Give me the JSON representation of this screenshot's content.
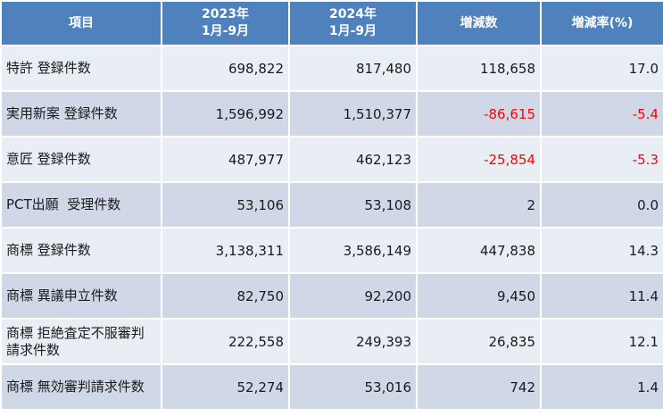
{
  "header": {
    "item": "項目",
    "y2023_line1": "2023年",
    "y2023_line2": "1月-9月",
    "y2024_line1": "2024年",
    "y2024_line2": "1月-9月",
    "diff": "増減数",
    "rate": "増減率(%)"
  },
  "rows": [
    {
      "item": "特許 登録件数",
      "y2023": "698,822",
      "y2024": "817,480",
      "diff": "118,658",
      "rate": "17.0",
      "negative": false
    },
    {
      "item": "実用新案 登録件数",
      "y2023": "1,596,992",
      "y2024": "1,510,377",
      "diff": "-86,615",
      "rate": "-5.4",
      "negative": true
    },
    {
      "item": "意匠 登録件数",
      "y2023": "487,977",
      "y2024": "462,123",
      "diff": "-25,854",
      "rate": "-5.3",
      "negative": true
    },
    {
      "item": "PCT出願  受理件数",
      "y2023": "53,106",
      "y2024": "53,108",
      "diff": "2",
      "rate": "0.0",
      "negative": false
    },
    {
      "item": "商標 登録件数",
      "y2023": "3,138,311",
      "y2024": "3,586,149",
      "diff": "447,838",
      "rate": "14.3",
      "negative": false
    },
    {
      "item": "商標 異議申立件数",
      "y2023": "82,750",
      "y2024": "92,200",
      "diff": "9,450",
      "rate": "11.4",
      "negative": false
    },
    {
      "item": "商標 拒絶査定不服審判請求件数",
      "y2023": "222,558",
      "y2024": "249,393",
      "diff": "26,835",
      "rate": "12.1",
      "negative": false
    },
    {
      "item": "商標 無効審判請求件数",
      "y2023": "52,274",
      "y2024": "53,016",
      "diff": "742",
      "rate": "1.4",
      "negative": false
    }
  ],
  "colors": {
    "header_bg": "#4f81bd",
    "row_dark": "#d0d8e8",
    "row_light": "#e9edf4",
    "negative": "#ff0000"
  }
}
